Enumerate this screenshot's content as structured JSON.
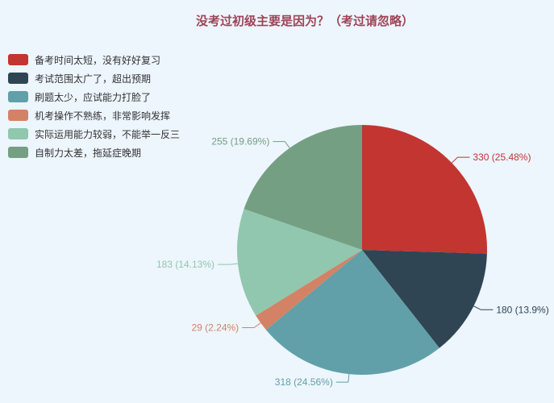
{
  "page": {
    "background_color": "#edf5fd"
  },
  "title": {
    "text": "没考过初级主要是因为？（考过请忽略）",
    "color": "#9e4456"
  },
  "legend": {
    "position": "top-left",
    "items": [
      {
        "label": "备考时间太短，没有好好复习",
        "color": "#c23531"
      },
      {
        "label": "考试范围太广了，超出预期",
        "color": "#2f4554"
      },
      {
        "label": "刷题太少，应试能力打脸了",
        "color": "#61a0a8"
      },
      {
        "label": "机考操作不熟练，非常影响发挥",
        "color": "#d48265"
      },
      {
        "label": "实际运用能力较弱，不能举一反三",
        "color": "#91c7ae"
      },
      {
        "label": "自制力太差，拖延症晚期",
        "color": "#749f83"
      }
    ]
  },
  "chart_data": {
    "type": "pie",
    "title": "没考过初级主要是因为？（考过请忽略）",
    "total": 1295,
    "start_angle_deg": 0,
    "direction": "clockwise",
    "center": [
      449,
      310
    ],
    "radius": 155,
    "label_line_length1": 10,
    "label_line_length2": 15,
    "legend_position": "top-left",
    "series": [
      {
        "name": "备考时间太短，没有好好复习",
        "value": 330,
        "percent": 25.48,
        "label": "330 (25.48%)",
        "color": "#c23531"
      },
      {
        "name": "考试范围太广了，超出预期",
        "value": 180,
        "percent": 13.9,
        "label": "180 (13.9%)",
        "color": "#2f4554"
      },
      {
        "name": "刷题太少，应试能力打脸了",
        "value": 318,
        "percent": 24.56,
        "label": "318 (24.56%)",
        "color": "#61a0a8"
      },
      {
        "name": "机考操作不熟练，非常影响发挥",
        "value": 29,
        "percent": 2.24,
        "label": "29 (2.24%)",
        "color": "#d48265"
      },
      {
        "name": "实际运用能力较弱，不能举一反三",
        "value": 183,
        "percent": 14.13,
        "label": "183 (14.13%)",
        "color": "#91c7ae"
      },
      {
        "name": "自制力太差，拖延症晚期",
        "value": 255,
        "percent": 19.69,
        "label": "255 (19.69%)",
        "color": "#749f83"
      }
    ]
  }
}
